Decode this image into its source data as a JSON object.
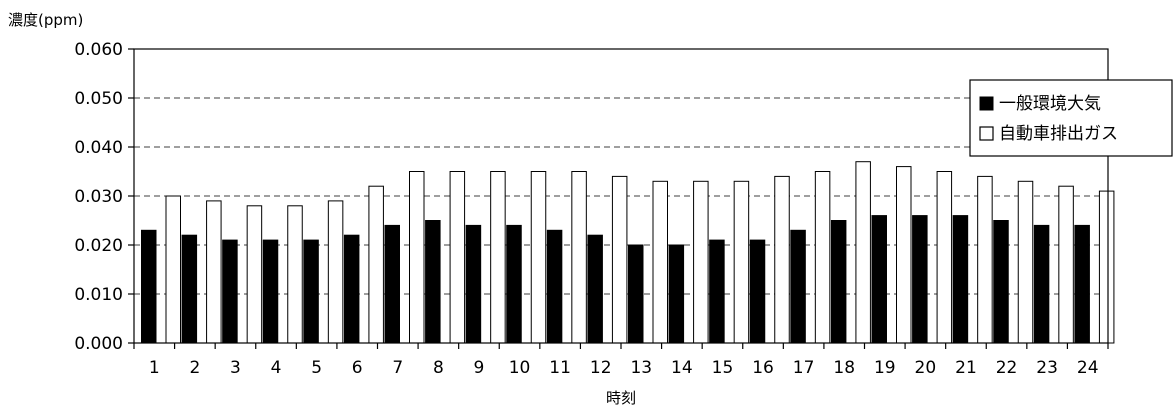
{
  "chart_data": {
    "type": "bar",
    "ylabel": "濃度(ppm)",
    "xlabel": "時刻",
    "categories": [
      "1",
      "2",
      "3",
      "4",
      "5",
      "6",
      "7",
      "8",
      "9",
      "10",
      "11",
      "12",
      "13",
      "14",
      "15",
      "16",
      "17",
      "18",
      "19",
      "20",
      "21",
      "22",
      "23",
      "24"
    ],
    "y_ticks": [
      "0.000",
      "0.010",
      "0.020",
      "0.030",
      "0.040",
      "0.050",
      "0.060"
    ],
    "ylim": [
      0,
      0.06
    ],
    "grid": "dashed horizontal",
    "legend_position": "top-right",
    "series": [
      {
        "name": "一般環境大気",
        "fill": "#000000",
        "values": [
          0.023,
          0.022,
          0.021,
          0.021,
          0.021,
          0.022,
          0.024,
          0.025,
          0.024,
          0.024,
          0.023,
          0.022,
          0.02,
          0.02,
          0.021,
          0.021,
          0.023,
          0.025,
          0.026,
          0.026,
          0.026,
          0.025,
          0.024,
          0.024
        ]
      },
      {
        "name": "自動車排出ガス",
        "fill": "#ffffff",
        "values": [
          0.03,
          0.029,
          0.028,
          0.028,
          0.029,
          0.032,
          0.035,
          0.035,
          0.035,
          0.035,
          0.035,
          0.034,
          0.033,
          0.033,
          0.033,
          0.034,
          0.035,
          0.037,
          0.036,
          0.035,
          0.034,
          0.033,
          0.032,
          0.031
        ]
      }
    ]
  }
}
